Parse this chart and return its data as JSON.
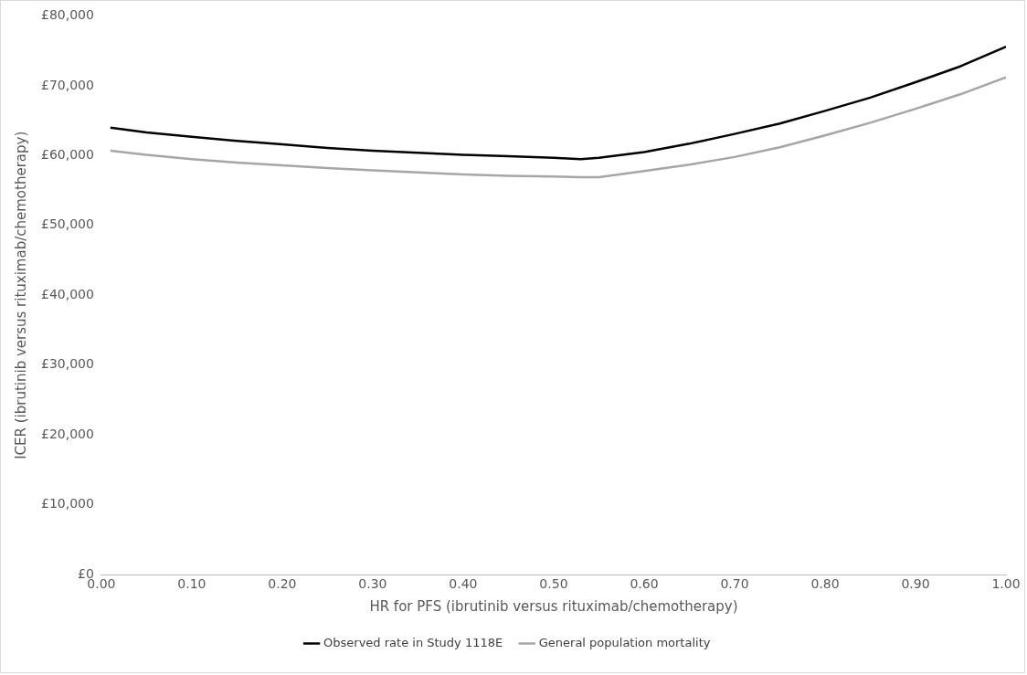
{
  "chart_data": {
    "type": "line",
    "xlabel": "HR for PFS (ibrutinib versus rituximab/chemotherapy)",
    "ylabel": "ICER (ibrutinib versus rituximab/chemotherapy)",
    "x": [
      0.01,
      0.05,
      0.1,
      0.15,
      0.2,
      0.25,
      0.3,
      0.35,
      0.4,
      0.45,
      0.5,
      0.53,
      0.55,
      0.6,
      0.65,
      0.7,
      0.75,
      0.8,
      0.85,
      0.9,
      0.95,
      1.0
    ],
    "series": [
      {
        "name": "Observed rate in Study 1118E",
        "color": "#000000",
        "values": [
          64000,
          63300,
          62700,
          62100,
          61600,
          61100,
          60700,
          60400,
          60100,
          59900,
          59700,
          59500,
          59700,
          60500,
          61700,
          63100,
          64600,
          66400,
          68300,
          70500,
          72800,
          75600
        ]
      },
      {
        "name": "General population mortality",
        "color": "#a6a6a6",
        "values": [
          60700,
          60100,
          59500,
          59000,
          58600,
          58200,
          57900,
          57600,
          57300,
          57100,
          57000,
          56900,
          56900,
          57800,
          58700,
          59800,
          61200,
          62900,
          64700,
          66700,
          68800,
          71200
        ]
      }
    ],
    "xlim": [
      0,
      1
    ],
    "xticks": [
      {
        "value": 0,
        "label": "0.00"
      },
      {
        "value": 0.1,
        "label": "0.10"
      },
      {
        "value": 0.2,
        "label": "0.20"
      },
      {
        "value": 0.3,
        "label": "0.30"
      },
      {
        "value": 0.4,
        "label": "0.40"
      },
      {
        "value": 0.5,
        "label": "0.50"
      },
      {
        "value": 0.6,
        "label": "0.60"
      },
      {
        "value": 0.7,
        "label": "0.70"
      },
      {
        "value": 0.8,
        "label": "0.80"
      },
      {
        "value": 0.9,
        "label": "0.90"
      },
      {
        "value": 1,
        "label": "1.00"
      }
    ],
    "ylim": [
      0,
      80000
    ],
    "yticks": [
      {
        "value": 0,
        "label": "£0"
      },
      {
        "value": 10000,
        "label": "£10,000"
      },
      {
        "value": 20000,
        "label": "£20,000"
      },
      {
        "value": 30000,
        "label": "£30,000"
      },
      {
        "value": 40000,
        "label": "£40,000"
      },
      {
        "value": 50000,
        "label": "£50,000"
      },
      {
        "value": 60000,
        "label": "£60,000"
      },
      {
        "value": 70000,
        "label": "£70,000"
      },
      {
        "value": 80000,
        "label": "£80,000"
      }
    ],
    "grid": false,
    "legend": "bottom",
    "marker": "none",
    "line_style": "solid"
  }
}
